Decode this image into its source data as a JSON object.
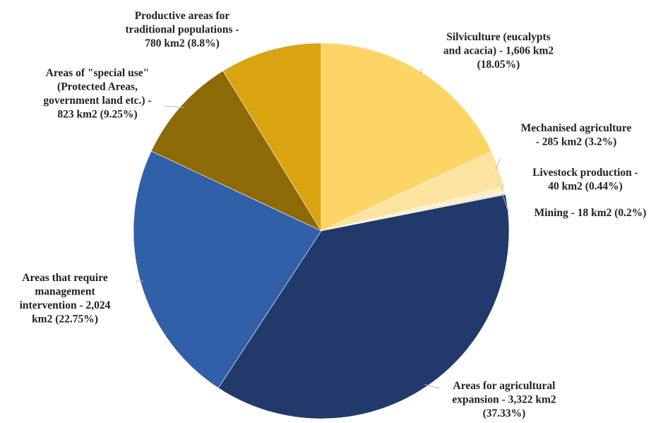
{
  "chart_data": {
    "type": "pie",
    "title": "",
    "unit": "km2",
    "slices": [
      {
        "name": "Silviculture (eucalypts and acacia)",
        "value": 1606,
        "percent": 18.05,
        "color": "#fdd567",
        "label": [
          "Silviculture (eucalypts",
          "and acacia) - 1,606 km2",
          "(18.05%)"
        ]
      },
      {
        "name": "Mechanised agriculture",
        "value": 285,
        "percent": 3.2,
        "color": "#fde3a0",
        "label": [
          "Mechanised agriculture",
          "- 285 km2 (3.2%)"
        ]
      },
      {
        "name": "Livestock production",
        "value": 40,
        "percent": 0.44,
        "color": "#fdeec6",
        "label": [
          "Livestock production -",
          "40 km2 (0.44%)"
        ]
      },
      {
        "name": "Mining",
        "value": 18,
        "percent": 0.2,
        "color": "#e7e2d5",
        "label": [
          "Mining - 18 km2 (0.2%)"
        ]
      },
      {
        "name": "Areas for agricultural expansion",
        "value": 3322,
        "percent": 37.33,
        "color": "#223a6b",
        "label": [
          "Areas for agricultural",
          "expansion  - 3,322 km2",
          "(37.33%)"
        ]
      },
      {
        "name": "Areas that require management intervention",
        "value": 2024,
        "percent": 22.75,
        "color": "#3160a8",
        "label": [
          "Areas that require",
          "management",
          "intervention  - 2,024",
          "km2 (22.75%)"
        ]
      },
      {
        "name": "Areas of \"special use\" (Protected Areas, government land etc.)",
        "value": 823,
        "percent": 9.25,
        "color": "#8d6a06",
        "label": [
          "Areas of \"special use\"",
          "(Protected Areas,",
          "government land etc.) -",
          "823 km2 (9.25%)"
        ]
      },
      {
        "name": "Productive areas for traditional populations",
        "value": 780,
        "percent": 8.8,
        "color": "#d9a410",
        "label": [
          "Productive areas for",
          "traditional populations -",
          "780 km2 (8.8%)"
        ]
      }
    ]
  }
}
